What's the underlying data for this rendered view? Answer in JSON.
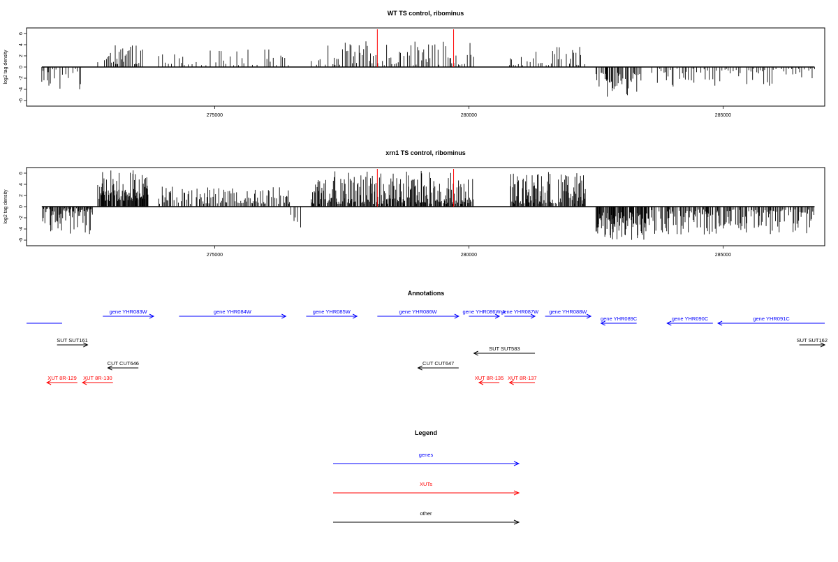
{
  "chart_data": [
    {
      "type": "bar",
      "title": "WT TS control, ribominus",
      "ylabel": "log2 tag density",
      "xlabel": "",
      "xlim": [
        271300,
        287000
      ],
      "ylim": [
        -7,
        7
      ],
      "x_ticks": [
        {
          "value": 275000,
          "label": "275000"
        },
        {
          "value": 280000,
          "label": "280000"
        },
        {
          "value": 285000,
          "label": "285000"
        }
      ],
      "y_ticks": [
        {
          "value": 6,
          "label": "6"
        },
        {
          "value": 4,
          "label": "4"
        },
        {
          "value": 2,
          "label": "2"
        },
        {
          "value": 0,
          "label": "0"
        },
        {
          "value": -2,
          "label": "-2"
        },
        {
          "value": -4,
          "label": "-4"
        },
        {
          "value": -6,
          "label": "-6"
        }
      ],
      "red_markers_x": [
        278200,
        279700
      ],
      "segments": [
        {
          "start": 271600,
          "end": 272400,
          "min": -4,
          "max": -0.3,
          "step": 30
        },
        {
          "start": 272700,
          "end": 273600,
          "min": 0.5,
          "max": 4.2,
          "step": 25
        },
        {
          "start": 273900,
          "end": 276500,
          "min": 0.3,
          "max": 3.2,
          "step": 55
        },
        {
          "start": 276900,
          "end": 280100,
          "min": 0.3,
          "max": 4.6,
          "step": 35
        },
        {
          "start": 280800,
          "end": 282300,
          "min": 0.3,
          "max": 3.6,
          "step": 40
        },
        {
          "start": 282500,
          "end": 283400,
          "min": -5.5,
          "max": -1.0,
          "step": 18
        },
        {
          "start": 283600,
          "end": 286800,
          "min": -3.5,
          "max": -0.3,
          "step": 45
        }
      ]
    },
    {
      "type": "bar",
      "title": "xrn1 TS control, ribominus",
      "ylabel": "log2 tag density",
      "xlabel": "",
      "xlim": [
        271300,
        287000
      ],
      "ylim": [
        -7,
        7
      ],
      "x_ticks": [
        {
          "value": 275000,
          "label": "275000"
        },
        {
          "value": 280000,
          "label": "280000"
        },
        {
          "value": 285000,
          "label": "285000"
        }
      ],
      "y_ticks": [
        {
          "value": 6,
          "label": "6"
        },
        {
          "value": 4,
          "label": "4"
        },
        {
          "value": 2,
          "label": "2"
        },
        {
          "value": 0,
          "label": "0"
        },
        {
          "value": -2,
          "label": "-2"
        },
        {
          "value": -4,
          "label": "-4"
        },
        {
          "value": -6,
          "label": "-6"
        }
      ],
      "red_markers_x": [
        278200,
        279700
      ],
      "segments": [
        {
          "start": 271600,
          "end": 272600,
          "min": -5.0,
          "max": -0.3,
          "step": 15
        },
        {
          "start": 272700,
          "end": 273700,
          "min": 1.0,
          "max": 6.5,
          "step": 10
        },
        {
          "start": 273900,
          "end": 276500,
          "min": 0.5,
          "max": 3.6,
          "step": 22
        },
        {
          "start": 276500,
          "end": 276700,
          "min": -4.0,
          "max": -1.0,
          "step": 40
        },
        {
          "start": 276900,
          "end": 280100,
          "min": 0.5,
          "max": 6.4,
          "step": 12
        },
        {
          "start": 280800,
          "end": 282300,
          "min": 0.5,
          "max": 6.2,
          "step": 14
        },
        {
          "start": 282500,
          "end": 283500,
          "min": -6.0,
          "max": -1.0,
          "step": 10
        },
        {
          "start": 283500,
          "end": 286800,
          "min": -5.0,
          "max": -0.5,
          "step": 18
        }
      ]
    }
  ],
  "annotations": {
    "title": "Annotations",
    "features": [
      {
        "label": "",
        "start": 271300,
        "end": 272000,
        "dir": "none",
        "color": "#0000ff",
        "row": 1
      },
      {
        "label": "gene YHR083W",
        "start": 272800,
        "end": 273800,
        "dir": "right",
        "color": "#0000ff",
        "row": 0
      },
      {
        "label": "gene YHR084W",
        "start": 274300,
        "end": 276400,
        "dir": "right",
        "color": "#0000ff",
        "row": 0
      },
      {
        "label": "gene YHR085W",
        "start": 276800,
        "end": 277800,
        "dir": "right",
        "color": "#0000ff",
        "row": 0
      },
      {
        "label": "gene YHR086W",
        "start": 278200,
        "end": 279800,
        "dir": "right",
        "color": "#0000ff",
        "row": 0
      },
      {
        "label": "gene YHR086W-A",
        "start": 280000,
        "end": 280600,
        "dir": "right",
        "color": "#0000ff",
        "row": 0
      },
      {
        "label": "gene YHR087W",
        "start": 280700,
        "end": 281300,
        "dir": "right",
        "color": "#0000ff",
        "row": 0
      },
      {
        "label": "gene YHR088W",
        "start": 281500,
        "end": 282400,
        "dir": "right",
        "color": "#0000ff",
        "row": 0
      },
      {
        "label": "gene YHR089C",
        "start": 282600,
        "end": 283300,
        "dir": "left",
        "color": "#0000ff",
        "row": 1
      },
      {
        "label": "gene YHR090C",
        "start": 283900,
        "end": 284800,
        "dir": "left",
        "color": "#0000ff",
        "row": 1
      },
      {
        "label": "gene YHR091C",
        "start": 284900,
        "end": 287000,
        "dir": "left",
        "color": "#0000ff",
        "row": 1
      },
      {
        "label": "SUT SUT161",
        "start": 271900,
        "end": 272500,
        "dir": "right",
        "color": "#000000",
        "row": 2
      },
      {
        "label": "SUT SUT583",
        "start": 280100,
        "end": 281300,
        "dir": "left",
        "color": "#000000",
        "row": 3
      },
      {
        "label": "SUT SUT162",
        "start": 286500,
        "end": 287000,
        "dir": "right",
        "color": "#000000",
        "row": 2
      },
      {
        "label": "CUT CUT646",
        "start": 272900,
        "end": 273500,
        "dir": "left",
        "color": "#000000",
        "row": 4
      },
      {
        "label": "CUT CUT647",
        "start": 279000,
        "end": 279800,
        "dir": "left",
        "color": "#000000",
        "row": 4
      },
      {
        "label": "XUT 8R-129",
        "start": 271700,
        "end": 272300,
        "dir": "left",
        "color": "#ff0000",
        "row": 5
      },
      {
        "label": "XUT 8R-130",
        "start": 272400,
        "end": 273000,
        "dir": "left",
        "color": "#ff0000",
        "row": 5
      },
      {
        "label": "XUT 8R-135",
        "start": 280200,
        "end": 280600,
        "dir": "left",
        "color": "#ff0000",
        "row": 5
      },
      {
        "label": "XUT 8R-137",
        "start": 280800,
        "end": 281300,
        "dir": "left",
        "color": "#ff0000",
        "row": 5
      }
    ]
  },
  "legend": {
    "title": "Legend",
    "items": [
      {
        "label": "genes",
        "color": "#0000ff"
      },
      {
        "label": "XUTs",
        "color": "#ff0000"
      },
      {
        "label": "other",
        "color": "#000000"
      }
    ]
  }
}
